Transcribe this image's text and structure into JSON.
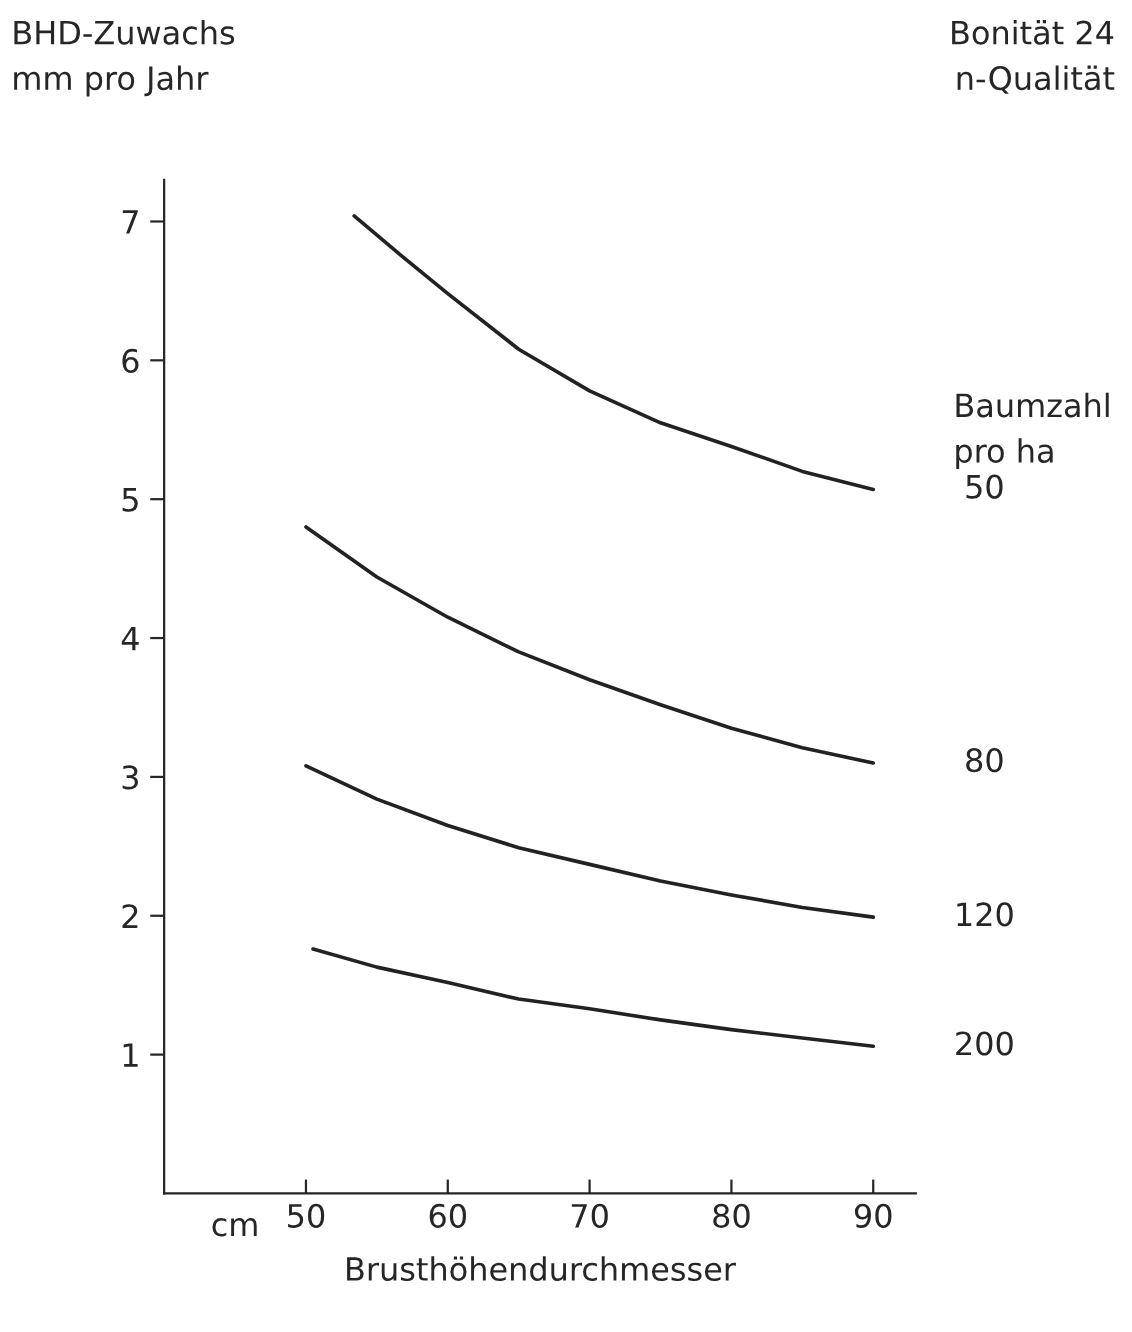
{
  "chart_data": {
    "type": "line",
    "ylabel": "BHD-Zuwachs\nmm pro Jahr",
    "xlabel": "Brusthöhendurchmesser",
    "legend_title": "Baumzahl\npro ha",
    "annotations": [
      "Bonität 24\nn-Qualität",
      "cm"
    ],
    "xlim": [
      40,
      93
    ],
    "xticks": [
      50,
      60,
      70,
      80,
      90
    ],
    "ylim": [
      0,
      7.3
    ],
    "yticks": [
      1,
      2,
      3,
      4,
      5,
      6,
      7
    ],
    "grid": false,
    "legend": false,
    "marker": "none",
    "line_style": "solid",
    "series": [
      {
        "name": "50",
        "color": "#222222",
        "x": [
          53.4,
          57,
          60,
          65,
          70,
          75,
          80,
          85,
          90
        ],
        "values": [
          7.04,
          6.73,
          6.48,
          6.08,
          5.78,
          5.55,
          5.38,
          5.2,
          5.07
        ]
      },
      {
        "name": "80",
        "color": "#222222",
        "x": [
          50,
          55,
          60,
          65,
          70,
          75,
          80,
          85,
          90
        ],
        "values": [
          4.8,
          4.44,
          4.15,
          3.9,
          3.7,
          3.52,
          3.35,
          3.21,
          3.1
        ]
      },
      {
        "name": "120",
        "color": "#222222",
        "x": [
          50,
          55,
          60,
          65,
          70,
          75,
          80,
          85,
          90
        ],
        "values": [
          3.08,
          2.84,
          2.65,
          2.49,
          2.37,
          2.25,
          2.15,
          2.06,
          1.99
        ]
      },
      {
        "name": "200",
        "color": "#222222",
        "x": [
          50.5,
          55,
          60,
          65,
          70,
          75,
          80,
          85,
          90
        ],
        "values": [
          1.76,
          1.63,
          1.52,
          1.4,
          1.33,
          1.25,
          1.18,
          1.12,
          1.06
        ]
      }
    ]
  }
}
